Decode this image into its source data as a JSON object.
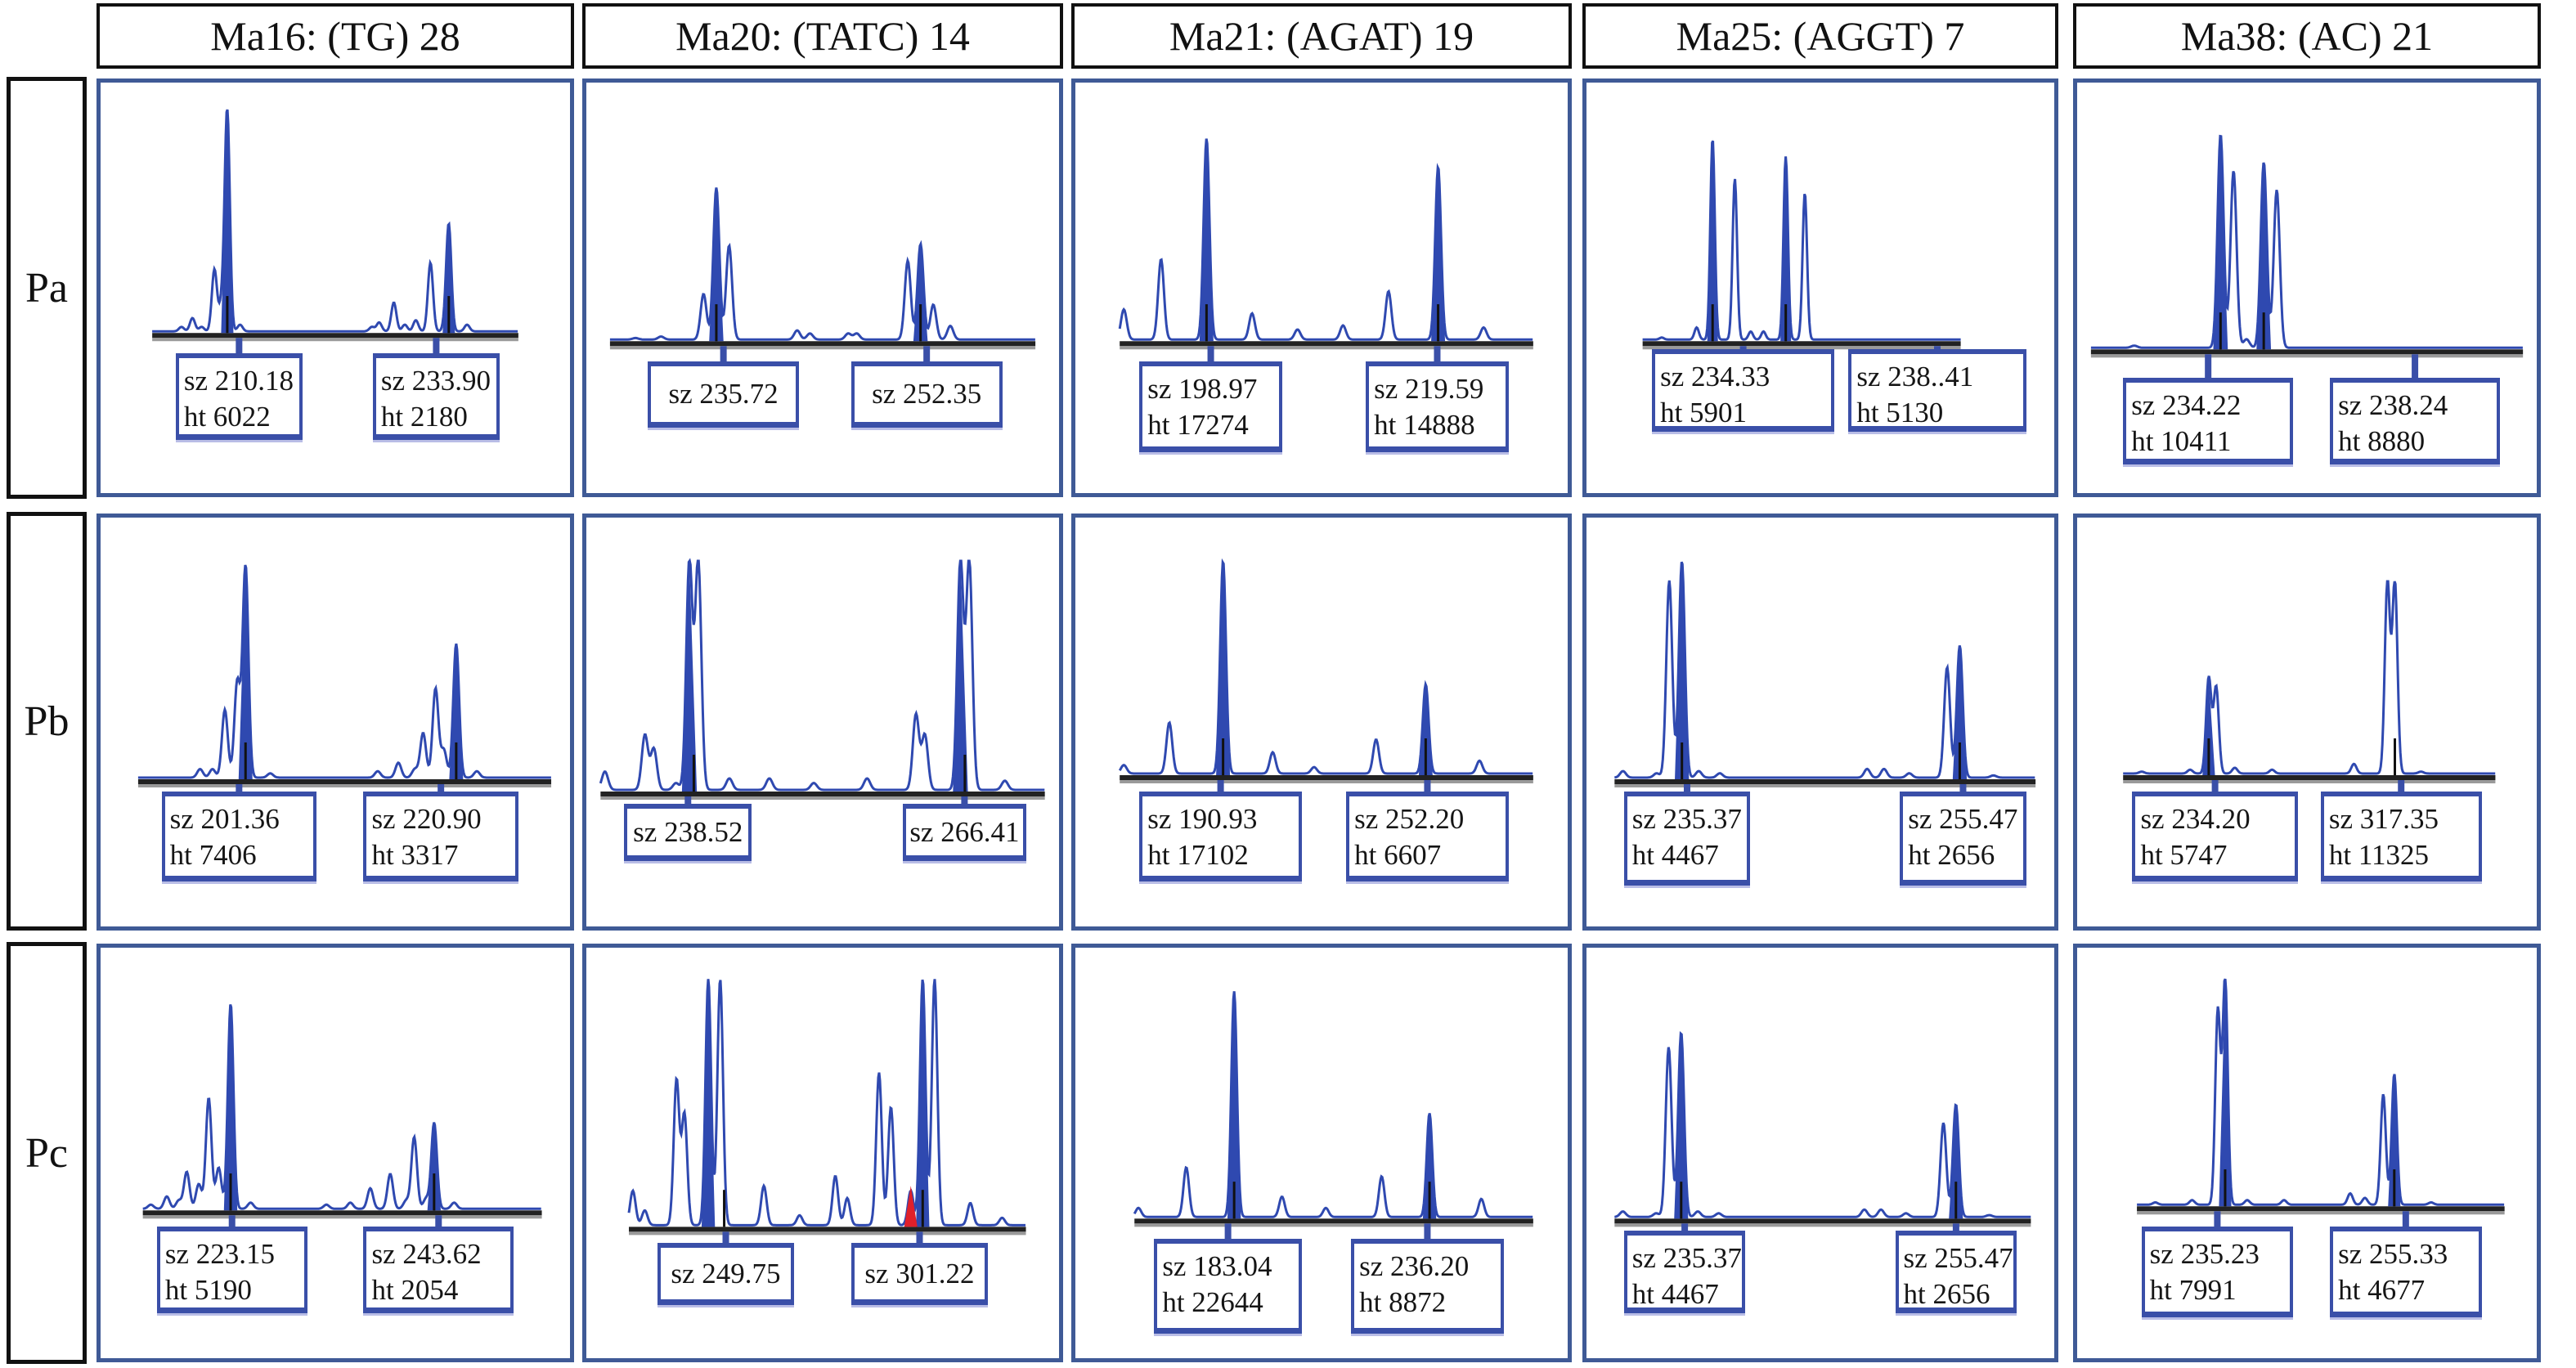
{
  "chart_data": {
    "type": "electropherogram-grid",
    "title": "",
    "columns": [
      {
        "id": "Ma16",
        "label": "Ma16: (TG) 28"
      },
      {
        "id": "Ma20",
        "label": "Ma20: (TATC) 14"
      },
      {
        "id": "Ma21",
        "label": "Ma21: (AGAT) 19"
      },
      {
        "id": "Ma25",
        "label": "Ma25: (AGGT) 7"
      },
      {
        "id": "Ma38",
        "label": "Ma38: (AC) 21"
      }
    ],
    "rows": [
      {
        "id": "Pa",
        "label": "Pa"
      },
      {
        "id": "Pb",
        "label": "Pb"
      },
      {
        "id": "Pc",
        "label": "Pc"
      }
    ],
    "cells": [
      [
        {
          "alleles": [
            {
              "sz": "210.18",
              "ht": "6022"
            },
            {
              "sz": "233.90",
              "ht": "2180"
            }
          ],
          "peaks": [
            [
              0.08,
              0.02
            ],
            [
              0.11,
              0.06
            ],
            [
              0.135,
              0.02
            ],
            [
              0.17,
              0.28
            ],
            [
              0.19,
              0.12
            ],
            [
              0.205,
              1.0
            ],
            [
              0.24,
              0.03
            ],
            [
              0.6,
              0.02
            ],
            [
              0.62,
              0.04
            ],
            [
              0.66,
              0.13
            ],
            [
              0.69,
              0.03
            ],
            [
              0.72,
              0.05
            ],
            [
              0.76,
              0.31
            ],
            [
              0.8,
              0.02
            ],
            [
              0.81,
              0.48
            ],
            [
              0.86,
              0.03
            ]
          ],
          "filled": [
            0.205,
            0.81
          ],
          "markers": [
            0.205,
            0.81
          ]
        },
        {
          "alleles": [
            {
              "sz": "235.72"
            },
            {
              "sz": "252.35"
            }
          ],
          "peaks": [
            [
              0.06,
              0.01
            ],
            [
              0.12,
              0.02
            ],
            [
              0.22,
              0.3
            ],
            [
              0.25,
              1.0
            ],
            [
              0.28,
              0.62
            ],
            [
              0.44,
              0.06
            ],
            [
              0.47,
              0.04
            ],
            [
              0.56,
              0.04
            ],
            [
              0.58,
              0.04
            ],
            [
              0.7,
              0.52
            ],
            [
              0.73,
              0.63
            ],
            [
              0.76,
              0.23
            ],
            [
              0.8,
              0.09
            ]
          ],
          "filled": [
            0.25,
            0.73
          ],
          "markers": [
            0.25,
            0.73
          ]
        },
        {
          "alleles": [
            {
              "sz": "198.97",
              "ht": "17274"
            },
            {
              "sz": "219.59",
              "ht": "14888"
            }
          ],
          "peaks": [
            [
              0.01,
              0.15
            ],
            [
              0.1,
              0.4
            ],
            [
              0.21,
              1.0
            ],
            [
              0.32,
              0.13
            ],
            [
              0.43,
              0.05
            ],
            [
              0.54,
              0.07
            ],
            [
              0.65,
              0.24
            ],
            [
              0.77,
              0.86
            ],
            [
              0.88,
              0.06
            ]
          ],
          "filled": [
            0.21,
            0.77
          ],
          "markers": [
            0.21,
            0.77
          ]
        },
        {
          "alleles": [
            {
              "sz": "234.33",
              "ht": "5901"
            },
            {
              "sz": "238..41",
              "ht": "5130"
            }
          ],
          "peaks": [
            [
              0.06,
              0.01
            ],
            [
              0.17,
              0.06
            ],
            [
              0.22,
              1.0
            ],
            [
              0.29,
              0.8
            ],
            [
              0.34,
              0.04
            ],
            [
              0.38,
              0.04
            ],
            [
              0.45,
              0.91
            ],
            [
              0.51,
              0.73
            ]
          ],
          "filled": [
            0.22,
            0.45
          ],
          "markers": [
            0.22,
            0.45
          ],
          "trace_end": 0.55
        },
        {
          "alleles": [
            {
              "sz": "234.22",
              "ht": "10411"
            },
            {
              "sz": "238.24",
              "ht": "8880"
            }
          ],
          "peaks": [
            [
              0.1,
              0.01
            ],
            [
              0.3,
              1.0
            ],
            [
              0.33,
              0.83
            ],
            [
              0.36,
              0.04
            ],
            [
              0.4,
              0.87
            ],
            [
              0.43,
              0.74
            ]
          ],
          "filled": [
            0.3,
            0.4
          ],
          "markers": [
            0.3,
            0.4
          ]
        }
      ],
      [
        {
          "alleles": [
            {
              "sz": "201.36",
              "ht": "7406"
            },
            {
              "sz": "220.90",
              "ht": "3317"
            }
          ],
          "peaks": [
            [
              0.15,
              0.04
            ],
            [
              0.18,
              0.04
            ],
            [
              0.21,
              0.32
            ],
            [
              0.24,
              0.45
            ],
            [
              0.26,
              1.0
            ],
            [
              0.32,
              0.02
            ],
            [
              0.58,
              0.03
            ],
            [
              0.63,
              0.07
            ],
            [
              0.67,
              0.04
            ],
            [
              0.69,
              0.21
            ],
            [
              0.72,
              0.42
            ],
            [
              0.74,
              0.13
            ],
            [
              0.77,
              0.63
            ],
            [
              0.82,
              0.03
            ]
          ],
          "filled": [
            0.26,
            0.77
          ],
          "markers": [
            0.26,
            0.77
          ]
        },
        {
          "alleles": [
            {
              "sz": "238.52"
            },
            {
              "sz": "266.41"
            }
          ],
          "peaks": [
            [
              0.01,
              0.08
            ],
            [
              0.1,
              0.24
            ],
            [
              0.12,
              0.18
            ],
            [
              0.17,
              0.03
            ],
            [
              0.2,
              1.0
            ],
            [
              0.22,
              1.0
            ],
            [
              0.29,
              0.05
            ],
            [
              0.38,
              0.05
            ],
            [
              0.48,
              0.03
            ],
            [
              0.6,
              0.05
            ],
            [
              0.71,
              0.33
            ],
            [
              0.73,
              0.24
            ],
            [
              0.81,
              1.0
            ],
            [
              0.83,
              1.0
            ],
            [
              0.91,
              0.04
            ]
          ],
          "filled": [
            0.2,
            0.81
          ],
          "markers": [
            0.21,
            0.82
          ],
          "clipped": true
        },
        {
          "alleles": [
            {
              "sz": "190.93",
              "ht": "17102"
            },
            {
              "sz": "252.20",
              "ht": "6607"
            }
          ],
          "peaks": [
            [
              0.01,
              0.04
            ],
            [
              0.12,
              0.24
            ],
            [
              0.25,
              1.0
            ],
            [
              0.37,
              0.1
            ],
            [
              0.47,
              0.03
            ],
            [
              0.62,
              0.16
            ],
            [
              0.74,
              0.42
            ],
            [
              0.87,
              0.06
            ]
          ],
          "filled": [
            0.25,
            0.74
          ],
          "markers": [
            0.25,
            0.74
          ]
        },
        {
          "alleles": [
            {
              "sz": "235.37",
              "ht": "4467"
            },
            {
              "sz": "255.47",
              "ht": "2656"
            }
          ],
          "peaks": [
            [
              0.02,
              0.03
            ],
            [
              0.1,
              0.02
            ],
            [
              0.13,
              0.91
            ],
            [
              0.16,
              1.0
            ],
            [
              0.2,
              0.03
            ],
            [
              0.25,
              0.02
            ],
            [
              0.6,
              0.04
            ],
            [
              0.64,
              0.04
            ],
            [
              0.7,
              0.02
            ],
            [
              0.79,
              0.51
            ],
            [
              0.82,
              0.61
            ],
            [
              0.9,
              0.01
            ]
          ],
          "filled": [
            0.16,
            0.82
          ],
          "markers": [
            0.16,
            0.82
          ]
        },
        {
          "alleles": [
            {
              "sz": "234.20",
              "ht": "5747"
            },
            {
              "sz": "317.35",
              "ht": "11325"
            }
          ],
          "peaks": [
            [
              0.05,
              0.01
            ],
            [
              0.18,
              0.02
            ],
            [
              0.23,
              0.5
            ],
            [
              0.25,
              0.45
            ],
            [
              0.3,
              0.03
            ],
            [
              0.4,
              0.02
            ],
            [
              0.62,
              0.05
            ],
            [
              0.71,
              1.0
            ],
            [
              0.73,
              1.0
            ],
            [
              0.8,
              0.01
            ]
          ],
          "filled": [
            0.23,
            0.72
          ],
          "markers": [
            0.23,
            0.73
          ]
        }
      ],
      [
        {
          "alleles": [
            {
              "sz": "223.15",
              "ht": "5190"
            },
            {
              "sz": "243.62",
              "ht": "2054"
            }
          ],
          "peaks": [
            [
              0.02,
              0.02
            ],
            [
              0.06,
              0.06
            ],
            [
              0.09,
              0.04
            ],
            [
              0.11,
              0.18
            ],
            [
              0.14,
              0.12
            ],
            [
              0.165,
              0.54
            ],
            [
              0.19,
              0.2
            ],
            [
              0.22,
              1.0
            ],
            [
              0.27,
              0.03
            ],
            [
              0.46,
              0.02
            ],
            [
              0.52,
              0.03
            ],
            [
              0.57,
              0.1
            ],
            [
              0.62,
              0.17
            ],
            [
              0.66,
              0.04
            ],
            [
              0.68,
              0.35
            ],
            [
              0.71,
              0.05
            ],
            [
              0.73,
              0.42
            ],
            [
              0.78,
              0.03
            ]
          ],
          "filled": [
            0.22,
            0.73
          ],
          "markers": [
            0.22,
            0.73
          ]
        },
        {
          "alleles": [
            {
              "sz": "249.75"
            },
            {
              "sz": "301.22"
            }
          ],
          "peaks": [
            [
              0.01,
              0.14
            ],
            [
              0.04,
              0.06
            ],
            [
              0.12,
              0.59
            ],
            [
              0.14,
              0.45
            ],
            [
              0.2,
              1.0
            ],
            [
              0.23,
              1.0
            ],
            [
              0.34,
              0.16
            ],
            [
              0.43,
              0.04
            ],
            [
              0.52,
              0.2
            ],
            [
              0.55,
              0.11
            ],
            [
              0.63,
              0.62
            ],
            [
              0.66,
              0.48
            ],
            [
              0.71,
              0.14
            ],
            [
              0.74,
              1.0
            ],
            [
              0.77,
              1.0
            ],
            [
              0.86,
              0.09
            ],
            [
              0.94,
              0.03
            ]
          ],
          "filled": [
            0.2,
            0.74
          ],
          "markers": [
            0.24,
            0.74
          ],
          "clipped": true,
          "red_peak": 0.71
        },
        {
          "alleles": [
            {
              "sz": "183.04",
              "ht": "22644"
            },
            {
              "sz": "236.20",
              "ht": "8872"
            }
          ],
          "peaks": [
            [
              0.01,
              0.04
            ],
            [
              0.13,
              0.22
            ],
            [
              0.25,
              1.0
            ],
            [
              0.37,
              0.09
            ],
            [
              0.48,
              0.04
            ],
            [
              0.62,
              0.18
            ],
            [
              0.74,
              0.46
            ],
            [
              0.87,
              0.08
            ]
          ],
          "filled": [
            0.25,
            0.74
          ],
          "markers": [
            0.25,
            0.74
          ]
        },
        {
          "alleles": [
            {
              "sz": "235.37",
              "ht": "4467"
            },
            {
              "sz": "255.47",
              "ht": "2656"
            }
          ],
          "peaks": [
            [
              0.02,
              0.03
            ],
            [
              0.1,
              0.02
            ],
            [
              0.13,
              0.92
            ],
            [
              0.16,
              1.0
            ],
            [
              0.2,
              0.03
            ],
            [
              0.25,
              0.02
            ],
            [
              0.6,
              0.04
            ],
            [
              0.64,
              0.04
            ],
            [
              0.7,
              0.02
            ],
            [
              0.79,
              0.51
            ],
            [
              0.82,
              0.61
            ],
            [
              0.9,
              0.01
            ]
          ],
          "filled": [
            0.16,
            0.82
          ],
          "markers": [
            0.16,
            0.82
          ]
        },
        {
          "alleles": [
            {
              "sz": "235.23",
              "ht": "7991"
            },
            {
              "sz": "255.33",
              "ht": "4677"
            }
          ],
          "peaks": [
            [
              0.05,
              0.01
            ],
            [
              0.15,
              0.02
            ],
            [
              0.22,
              0.86
            ],
            [
              0.24,
              1.0
            ],
            [
              0.3,
              0.02
            ],
            [
              0.4,
              0.02
            ],
            [
              0.58,
              0.05
            ],
            [
              0.62,
              0.03
            ],
            [
              0.67,
              0.49
            ],
            [
              0.7,
              0.58
            ],
            [
              0.8,
              0.01
            ]
          ],
          "filled": [
            0.24,
            0.7
          ],
          "markers": [
            0.24,
            0.7
          ]
        }
      ]
    ],
    "colors": {
      "trace": "#2f49b0",
      "panel_border": "#3f5a96",
      "baseline": "#222222",
      "highlight": "#e0202a"
    }
  }
}
